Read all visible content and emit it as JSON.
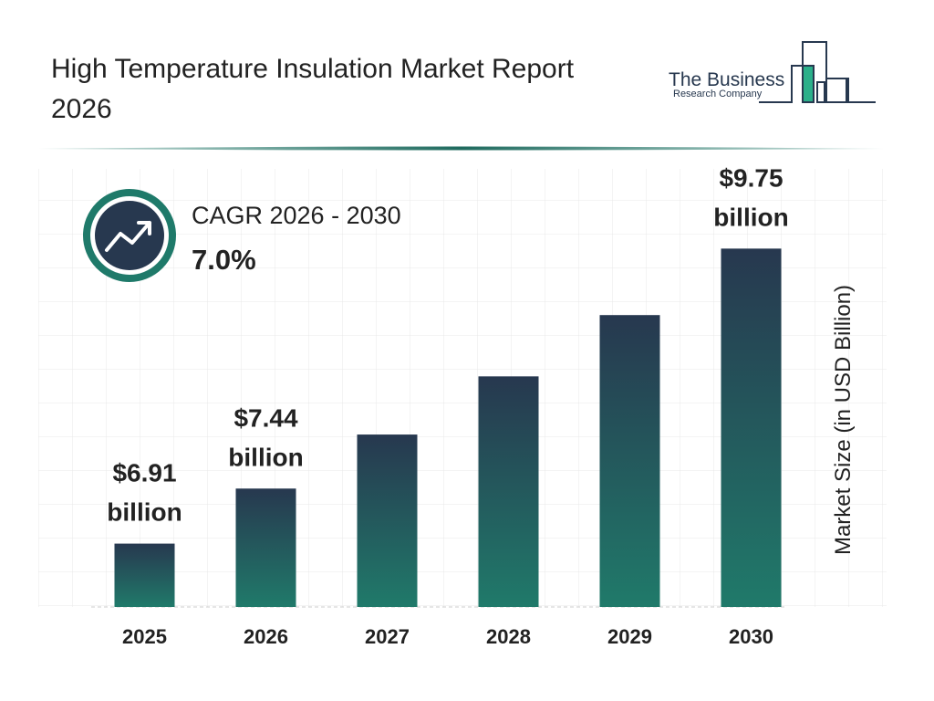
{
  "header": {
    "title": "High Temperature Insulation Market Report 2026",
    "logo_line1": "The Business",
    "logo_line2": "Research Company"
  },
  "cagr": {
    "label": "CAGR 2026 - 2030",
    "value": "7.0%"
  },
  "chart_data": {
    "type": "bar",
    "categories": [
      "2025",
      "2026",
      "2027",
      "2028",
      "2029",
      "2030"
    ],
    "values": [
      6.91,
      7.44,
      7.96,
      8.52,
      9.11,
      9.75
    ],
    "value_labels": [
      "$6.91 billion",
      "$7.44 billion",
      null,
      null,
      null,
      "$9.75 billion"
    ],
    "ylim": [
      6.3,
      10.5
    ],
    "y_axis_label": "Market Size (in USD Billion)",
    "color_top": "#27384f",
    "color_bottom": "#207a6a"
  }
}
